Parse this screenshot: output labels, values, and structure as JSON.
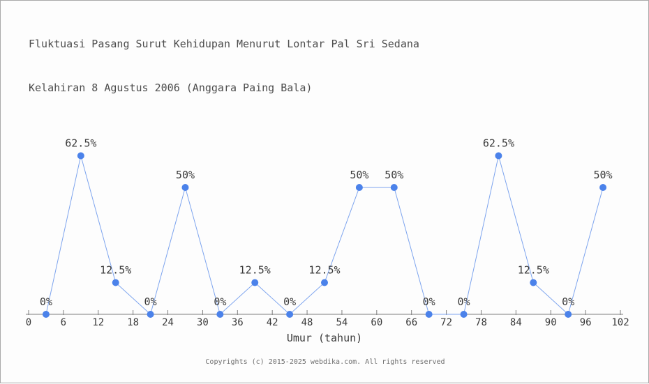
{
  "page": {
    "footer": "Copyrights (c) 2015-2025 webdika.com. All rights reserved"
  },
  "colors": {
    "marker": "#4b82ea",
    "line": "#7da4ee",
    "axis": "#7d7d7d",
    "title_text": "#4d4d4d",
    "label_text": "#3a3a3a",
    "footer_text": "#6e6e6e",
    "border": "#a9a9a9"
  },
  "chart_data": {
    "type": "line",
    "title": "Fluktuasi Pasang Surut Kehidupan Menurut Lontar Pal Sri Sedana Kelahiran 8 Agustus 2006 (Anggara Paing Bala)",
    "title_lines": [
      "Fluktuasi Pasang Surut Kehidupan Menurut Lontar Pal Sri Sedana",
      "Kelahiran 8 Agustus 2006 (Anggara Paing Bala)"
    ],
    "xlabel": "Umur (tahun)",
    "ylabel": "",
    "x": [
      3,
      9,
      15,
      21,
      27,
      33,
      39,
      45,
      51,
      57,
      63,
      69,
      75,
      81,
      87,
      93,
      99
    ],
    "values": [
      0,
      62.5,
      12.5,
      0,
      50,
      0,
      12.5,
      0,
      12.5,
      50,
      50,
      0,
      0,
      62.5,
      12.5,
      0,
      50
    ],
    "point_labels": [
      "0%",
      "62.5%",
      "12.5%",
      "0%",
      "50%",
      "0%",
      "12.5%",
      "0%",
      "12.5%",
      "50%",
      "50%",
      "0%",
      "0%",
      "62.5%",
      "12.5%",
      "0%",
      "50%"
    ],
    "xticks": [
      0,
      6,
      12,
      18,
      24,
      30,
      36,
      42,
      48,
      54,
      60,
      66,
      72,
      78,
      84,
      90,
      96,
      102
    ],
    "xlim": [
      0,
      102
    ],
    "ylim": [
      0,
      100
    ],
    "grid": false,
    "legend": null
  }
}
